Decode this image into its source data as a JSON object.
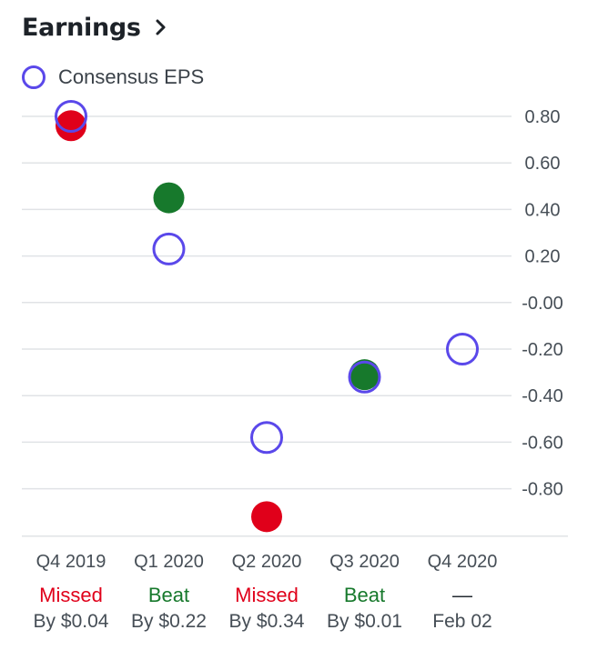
{
  "header": {
    "title": "Earnings",
    "chevron_icon": "chevron-right-icon"
  },
  "legend": {
    "consensus_label": "Consensus EPS"
  },
  "colors": {
    "consensus": "#5a48ea",
    "beat": "#17792c",
    "missed": "#e0001a",
    "grid": "#e0e3e6"
  },
  "chart_data": {
    "type": "scatter",
    "categories": [
      "Q4 2019",
      "Q1 2020",
      "Q2 2020",
      "Q3 2020",
      "Q4 2020"
    ],
    "yticks": [
      "0.80",
      "0.60",
      "0.40",
      "0.20",
      "-0.00",
      "-0.20",
      "-0.40",
      "-0.60",
      "-0.80"
    ],
    "ylim": [
      -1.0,
      0.8
    ],
    "grid": true,
    "legend_position": "top-left",
    "series": [
      {
        "name": "Consensus EPS",
        "style": "hollow",
        "values": [
          0.8,
          0.23,
          -0.58,
          -0.32,
          -0.2
        ]
      },
      {
        "style": "filled",
        "values": [
          0.76,
          0.45,
          -0.92,
          -0.31,
          null
        ],
        "status": [
          "missed",
          "beat",
          "missed",
          "beat",
          null
        ]
      }
    ],
    "results": [
      {
        "status": "Missed",
        "detail": "By $0.04"
      },
      {
        "status": "Beat",
        "detail": "By $0.22"
      },
      {
        "status": "Missed",
        "detail": "By $0.34"
      },
      {
        "status": "Beat",
        "detail": "By $0.01"
      },
      {
        "status": "—",
        "detail": "Feb 02"
      }
    ]
  }
}
